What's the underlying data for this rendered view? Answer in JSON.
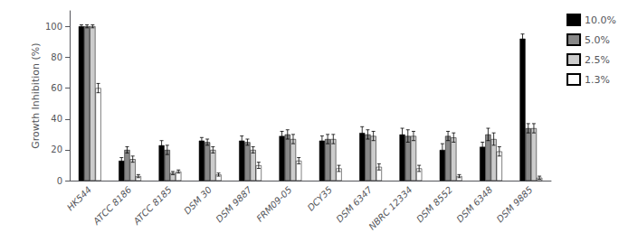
{
  "chart_data": {
    "type": "bar",
    "ylabel": "Growth Inhibition (%)",
    "categories": [
      "HK544",
      "ATCC 8186",
      "ATCC 8185",
      "DSM 30",
      "DSM 9887",
      "FRM09-05",
      "DCY35",
      "DSM 6347",
      "NBRC 12334",
      "DSM 8552",
      "DSM 6348",
      "DSM 9885"
    ],
    "series": [
      {
        "name": "10.0%",
        "color": "#000000",
        "values": [
          100,
          13,
          23,
          26,
          26,
          29,
          26,
          31,
          30,
          20,
          22,
          92
        ],
        "errors": [
          1,
          2,
          3,
          2,
          3,
          3,
          3,
          4,
          4,
          4,
          3,
          3
        ]
      },
      {
        "name": "5.0%",
        "color": "#888888",
        "values": [
          100,
          20,
          20,
          25,
          25,
          30,
          27,
          30,
          29,
          29,
          30,
          34
        ],
        "errors": [
          1,
          2,
          3,
          2,
          2,
          3,
          3,
          3,
          4,
          3,
          4,
          3
        ]
      },
      {
        "name": "2.5%",
        "color": "#cccccc",
        "values": [
          100,
          14,
          5,
          20,
          20,
          27,
          27,
          29,
          29,
          28,
          27,
          34
        ],
        "errors": [
          1,
          2,
          1,
          2,
          2,
          3,
          3,
          3,
          3,
          3,
          4,
          3
        ]
      },
      {
        "name": "1.3%",
        "color": "#ffffff",
        "values": [
          60,
          3,
          6,
          4,
          10,
          13,
          8,
          9,
          8,
          3,
          19,
          2
        ],
        "errors": [
          3,
          1,
          1,
          1,
          2,
          2,
          2,
          2,
          2,
          1,
          3,
          1
        ]
      }
    ],
    "ylim": [
      0,
      110
    ],
    "yticks": [
      0,
      20,
      40,
      60,
      80,
      100
    ],
    "grid": false,
    "legend": "right"
  }
}
